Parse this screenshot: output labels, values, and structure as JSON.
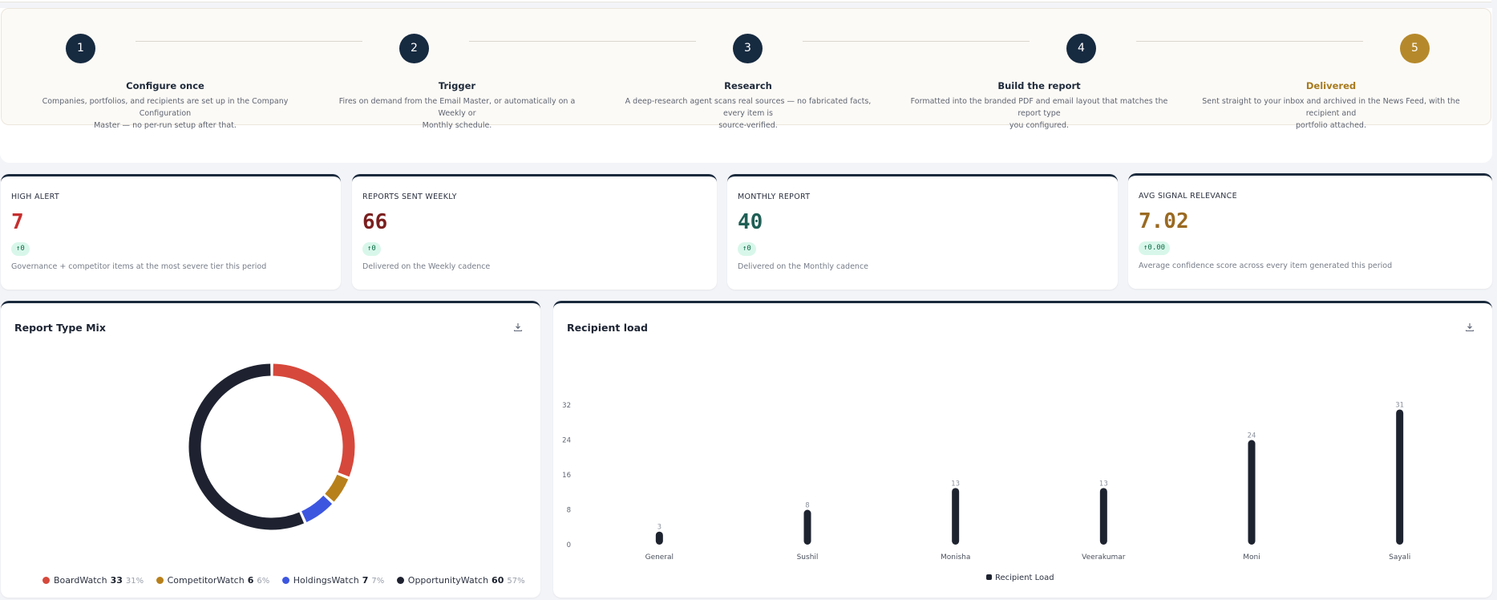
{
  "steps": [
    {
      "number": "1",
      "title": "Configure once",
      "desc_lines": [
        "Companies, portfolios, and recipients are set up in the Company Configuration",
        "Master — no per-run setup after that."
      ]
    },
    {
      "number": "2",
      "title": "Trigger",
      "desc_lines": [
        "Fires on demand from the Email Master, or automatically on a Weekly or",
        "Monthly schedule."
      ]
    },
    {
      "number": "3",
      "title": "Research",
      "desc_lines": [
        "A deep-research agent scans real sources — no fabricated facts, every item is",
        "source-verified."
      ]
    },
    {
      "number": "4",
      "title": "Build the report",
      "desc_lines": [
        "Formatted into the branded PDF and email layout that matches the report type",
        "you configured."
      ]
    },
    {
      "number": "5",
      "title": "Delivered",
      "desc_lines": [
        "Sent straight to your inbox and archived in the News Feed, with the recipient and",
        "portfolio attached."
      ]
    }
  ],
  "kpis": [
    {
      "label": "HIGH ALERT",
      "value": "7",
      "badge": "↑0",
      "sub": "Governance + competitor items at the most severe tier this period",
      "color": "#c62f2f"
    },
    {
      "label": "REPORTS SENT WEEKLY",
      "value": "66",
      "badge": "↑0",
      "sub": "Delivered on the Weekly cadence",
      "color": "#7b1f1f"
    },
    {
      "label": "MONTHLY REPORT",
      "value": "40",
      "badge": "↑0",
      "sub": "Delivered on the Monthly cadence",
      "color": "#1f5f55"
    },
    {
      "label": "AVG SIGNAL RELEVANCE",
      "value": "7.02",
      "badge": "↑0.00",
      "sub": "Average confidence score across every item generated this period",
      "color": "#9a6a22"
    }
  ],
  "report_mix": {
    "title": "Report Type Mix",
    "download_icon": "download-icon",
    "chart_data": {
      "type": "pie",
      "categories": [
        "BoardWatch",
        "CompetitorWatch",
        "HoldingsWatch",
        "OpportunityWatch"
      ],
      "values": [
        33,
        6,
        7,
        60
      ],
      "percents": [
        "31%",
        "6%",
        "7%",
        "57%"
      ],
      "colors": [
        "#d6483b",
        "#b8801a",
        "#3d56e0",
        "#1e2230"
      ]
    }
  },
  "recipient_load": {
    "title": "Recipient load",
    "download_icon": "download-icon",
    "chart_data": {
      "type": "bar",
      "categories": [
        "General",
        "Sushil",
        "Monisha",
        "Veerakumar",
        "Moni",
        "Sayali"
      ],
      "values": [
        3,
        8,
        13,
        13,
        24,
        31
      ],
      "ylim": [
        0,
        32
      ],
      "yticks": [
        "0",
        "8",
        "16",
        "24",
        "32"
      ],
      "series_name": "Recipient Load",
      "color": "#1e2330"
    }
  }
}
